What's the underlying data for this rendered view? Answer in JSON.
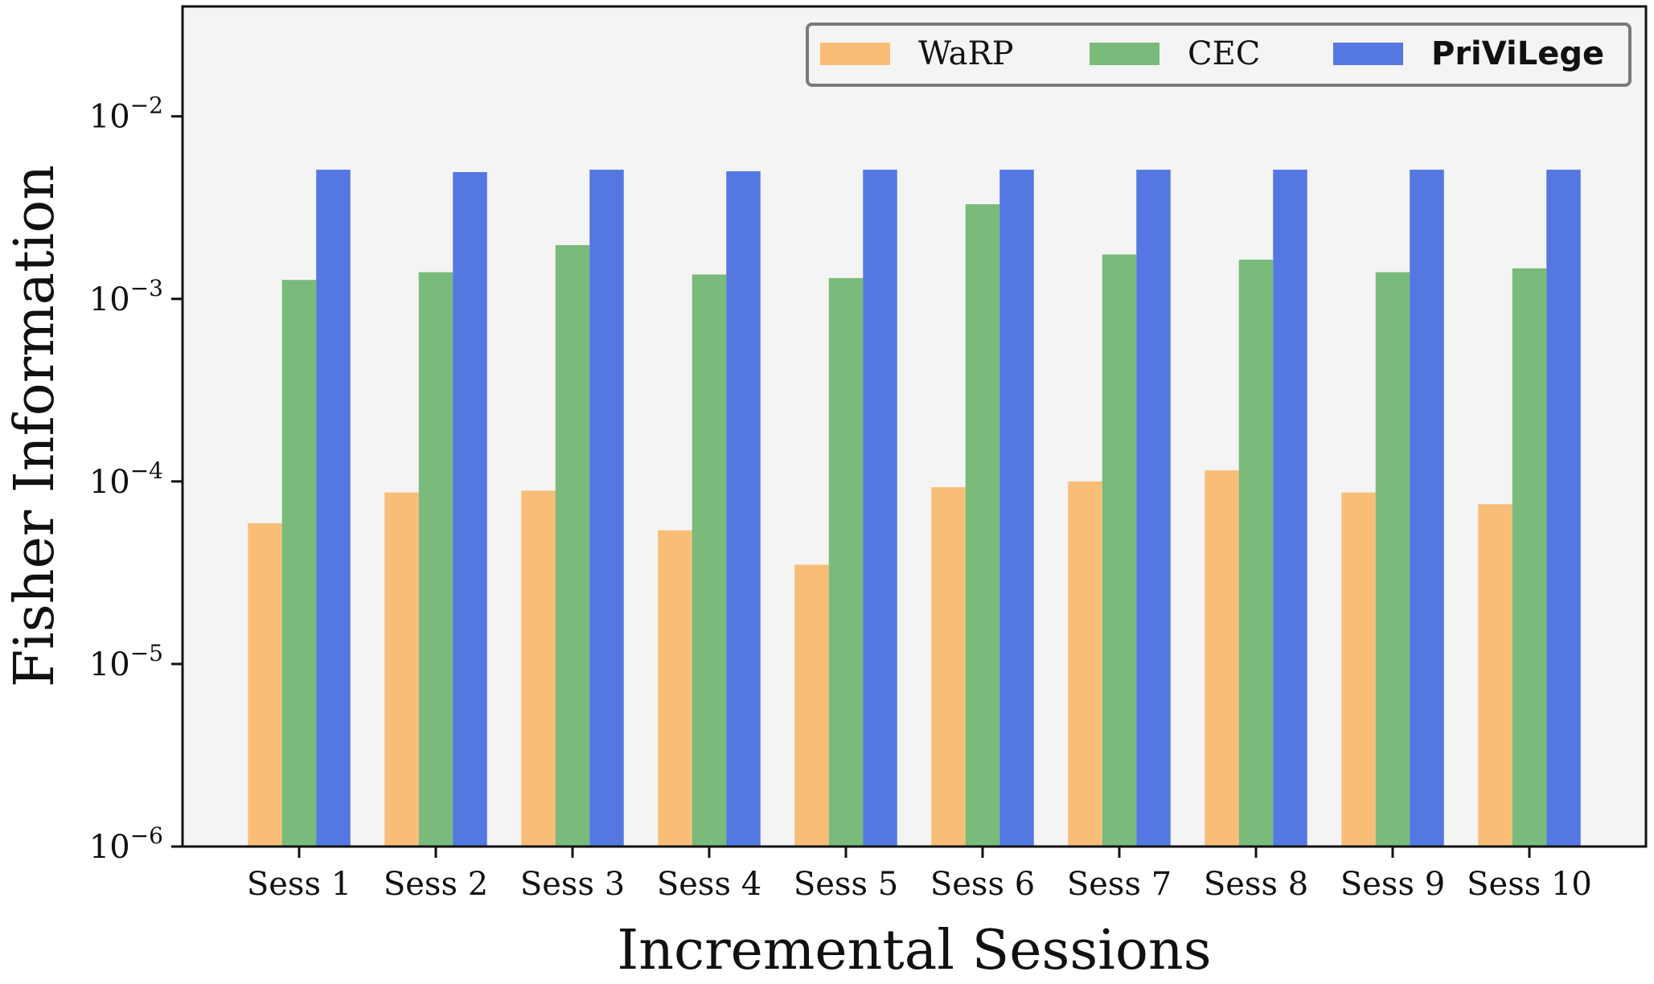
{
  "chart_data": {
    "type": "bar",
    "ylabel": "Fisher Information",
    "xlabel": "Incremental Sessions",
    "yscale": "log",
    "ylim": [
      1e-06,
      0.04
    ],
    "yticks": [
      {
        "value": 1e-06,
        "base": "10",
        "exp": "−6"
      },
      {
        "value": 1e-05,
        "base": "10",
        "exp": "−5"
      },
      {
        "value": 0.0001,
        "base": "10",
        "exp": "−4"
      },
      {
        "value": 0.001,
        "base": "10",
        "exp": "−3"
      },
      {
        "value": 0.01,
        "base": "10",
        "exp": "−2"
      }
    ],
    "categories": [
      "Sess 1",
      "Sess 2",
      "Sess 3",
      "Sess 4",
      "Sess 5",
      "Sess 6",
      "Sess 7",
      "Sess 8",
      "Sess 9",
      "Sess 10"
    ],
    "series": [
      {
        "name": "WaRP",
        "color": "#f8be78",
        "bold": false,
        "values": [
          5.9e-05,
          8.7e-05,
          8.9e-05,
          5.4e-05,
          3.5e-05,
          9.3e-05,
          0.0001,
          0.000115,
          8.7e-05,
          7.5e-05
        ]
      },
      {
        "name": "CEC",
        "color": "#7aba7a",
        "bold": false,
        "values": [
          0.00127,
          0.0014,
          0.00197,
          0.00136,
          0.0013,
          0.0033,
          0.00175,
          0.00164,
          0.0014,
          0.00147
        ]
      },
      {
        "name": "PriViLege",
        "color": "#5577e2",
        "bold": true,
        "values": [
          0.0051,
          0.00495,
          0.0051,
          0.005,
          0.0051,
          0.0051,
          0.0051,
          0.0051,
          0.0051,
          0.0051
        ]
      }
    ],
    "grid": false,
    "legend": "top-right",
    "plot_background": "#f4f4f4"
  }
}
